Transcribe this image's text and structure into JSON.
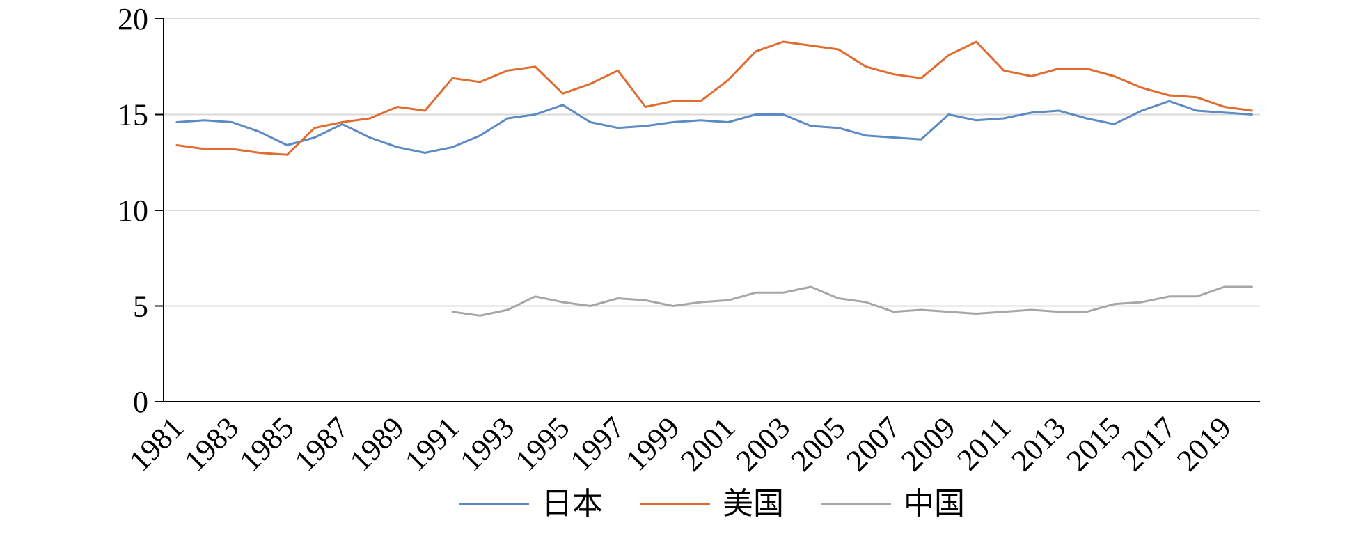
{
  "chart_data": {
    "type": "line",
    "title": "",
    "xlabel": "",
    "ylabel": "",
    "ylim": [
      0,
      20
    ],
    "yticks": [
      0,
      5,
      10,
      15,
      20
    ],
    "grid": true,
    "legend_position": "bottom",
    "x": [
      1981,
      1982,
      1983,
      1984,
      1985,
      1986,
      1987,
      1988,
      1989,
      1990,
      1991,
      1992,
      1993,
      1994,
      1995,
      1996,
      1997,
      1998,
      1999,
      2000,
      2001,
      2002,
      2003,
      2004,
      2005,
      2006,
      2007,
      2008,
      2009,
      2010,
      2011,
      2012,
      2013,
      2014,
      2015,
      2016,
      2017,
      2018,
      2019,
      2020
    ],
    "xtick_labels": [
      "1981",
      "1983",
      "1985",
      "1987",
      "1989",
      "1991",
      "1993",
      "1995",
      "1997",
      "1999",
      "2001",
      "2003",
      "2005",
      "2007",
      "2009",
      "2011",
      "2013",
      "2015",
      "2017",
      "2019"
    ],
    "series": [
      {
        "name": "日本",
        "color": "#5b8ac4",
        "values": [
          14.6,
          14.7,
          14.6,
          14.1,
          13.4,
          13.8,
          14.5,
          13.8,
          13.3,
          13.0,
          13.3,
          13.9,
          14.8,
          15.0,
          15.5,
          14.6,
          14.3,
          14.4,
          14.6,
          14.7,
          14.6,
          15.0,
          15.0,
          14.4,
          14.3,
          13.9,
          13.8,
          13.7,
          15.0,
          14.7,
          14.8,
          15.1,
          15.2,
          14.8,
          14.5,
          15.2,
          15.7,
          15.2,
          15.1,
          15.0
        ]
      },
      {
        "name": "美国",
        "color": "#e06c2f",
        "values": [
          13.4,
          13.2,
          13.2,
          13.0,
          12.9,
          14.3,
          14.6,
          14.8,
          15.4,
          15.2,
          16.9,
          16.7,
          17.3,
          17.5,
          16.1,
          16.6,
          17.3,
          15.4,
          15.7,
          15.7,
          16.8,
          18.3,
          18.8,
          18.6,
          18.4,
          17.5,
          17.1,
          16.9,
          18.1,
          18.8,
          17.3,
          17.0,
          17.4,
          17.4,
          17.0,
          16.4,
          16.0,
          15.9,
          15.4,
          15.2
        ]
      },
      {
        "name": "中国",
        "color": "#a6a6a6",
        "values": [
          null,
          null,
          null,
          null,
          null,
          null,
          null,
          null,
          null,
          null,
          4.7,
          4.5,
          4.8,
          5.5,
          5.2,
          5.0,
          5.4,
          5.3,
          5.0,
          5.2,
          5.3,
          5.7,
          5.7,
          6.0,
          5.4,
          5.2,
          4.7,
          4.8,
          4.7,
          4.6,
          4.7,
          4.8,
          4.7,
          4.7,
          5.1,
          5.2,
          5.5,
          5.5,
          6.0,
          6.0
        ]
      }
    ]
  }
}
